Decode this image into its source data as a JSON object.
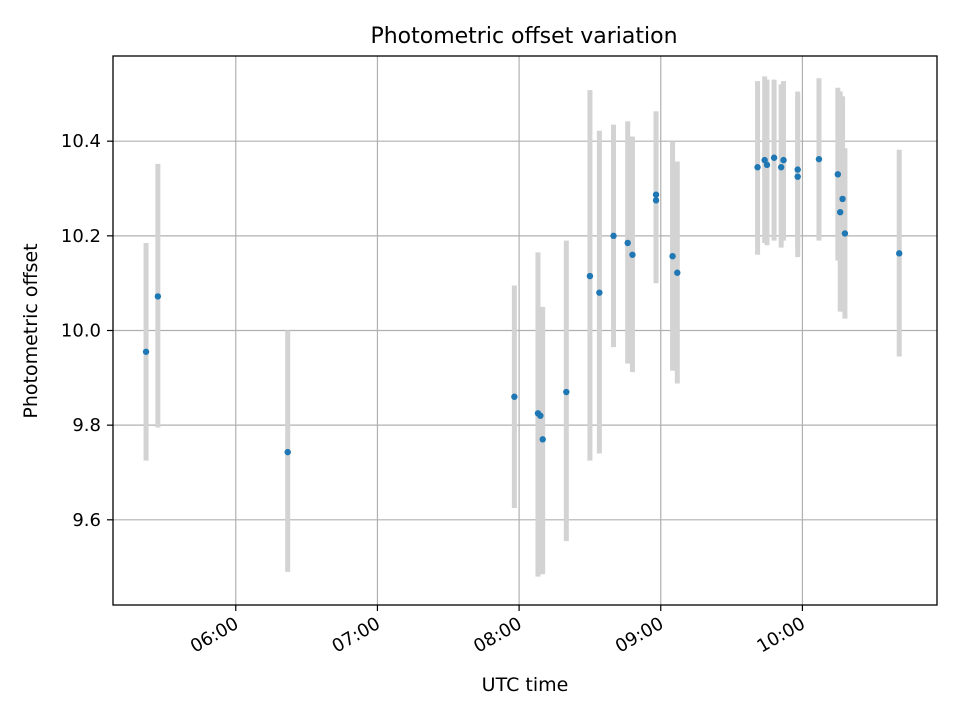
{
  "chart_data": {
    "type": "scatter",
    "title": "Photometric offset variation",
    "xlabel": "UTC time",
    "ylabel": "Photometric offset",
    "x_is_time": true,
    "xlim": [
      "05:08",
      "10:57"
    ],
    "ylim": [
      9.42,
      10.58
    ],
    "x_ticks": [
      "06:00",
      "07:00",
      "08:00",
      "09:00",
      "10:00"
    ],
    "y_ticks": [
      9.6,
      9.8,
      10.0,
      10.2,
      10.4
    ],
    "grid": true,
    "marker_color": "#1f77b4",
    "errorbar_color": "#d3d3d3",
    "points": [
      {
        "t": "05:22",
        "y": 9.955,
        "lo": 9.725,
        "hi": 10.185
      },
      {
        "t": "05:27",
        "y": 10.072,
        "lo": 9.795,
        "hi": 10.352
      },
      {
        "t": "06:22",
        "y": 9.743,
        "lo": 9.49,
        "hi": 10.0
      },
      {
        "t": "07:58",
        "y": 9.86,
        "lo": 9.625,
        "hi": 10.095
      },
      {
        "t": "08:08",
        "y": 9.825,
        "lo": 9.48,
        "hi": 10.165
      },
      {
        "t": "08:09",
        "y": 9.82,
        "lo": 9.49,
        "hi": 10.05
      },
      {
        "t": "08:10",
        "y": 9.77,
        "lo": 9.485,
        "hi": 10.05
      },
      {
        "t": "08:20",
        "y": 9.87,
        "lo": 9.555,
        "hi": 10.19
      },
      {
        "t": "08:30",
        "y": 10.115,
        "lo": 9.725,
        "hi": 10.508
      },
      {
        "t": "08:34",
        "y": 10.08,
        "lo": 9.74,
        "hi": 10.422
      },
      {
        "t": "08:40",
        "y": 10.2,
        "lo": 9.965,
        "hi": 10.435
      },
      {
        "t": "08:46",
        "y": 10.185,
        "lo": 9.93,
        "hi": 10.442
      },
      {
        "t": "08:48",
        "y": 10.16,
        "lo": 9.912,
        "hi": 10.41
      },
      {
        "t": "08:58",
        "y": 10.287,
        "lo": 10.1,
        "hi": 10.463
      },
      {
        "t": "08:58",
        "y": 10.275,
        "lo": 10.1,
        "hi": 10.463
      },
      {
        "t": "09:05",
        "y": 10.157,
        "lo": 9.915,
        "hi": 10.4
      },
      {
        "t": "09:07",
        "y": 10.122,
        "lo": 9.888,
        "hi": 10.357
      },
      {
        "t": "09:41",
        "y": 10.345,
        "lo": 10.16,
        "hi": 10.527
      },
      {
        "t": "09:44",
        "y": 10.36,
        "lo": 10.185,
        "hi": 10.537
      },
      {
        "t": "09:45",
        "y": 10.35,
        "lo": 10.18,
        "hi": 10.53
      },
      {
        "t": "09:48",
        "y": 10.365,
        "lo": 10.19,
        "hi": 10.53
      },
      {
        "t": "09:51",
        "y": 10.345,
        "lo": 10.175,
        "hi": 10.52
      },
      {
        "t": "09:52",
        "y": 10.36,
        "lo": 10.19,
        "hi": 10.527
      },
      {
        "t": "09:58",
        "y": 10.325,
        "lo": 10.155,
        "hi": 10.497
      },
      {
        "t": "09:58",
        "y": 10.34,
        "lo": 10.175,
        "hi": 10.505
      },
      {
        "t": "10:07",
        "y": 10.362,
        "lo": 10.19,
        "hi": 10.533
      },
      {
        "t": "10:15",
        "y": 10.33,
        "lo": 10.148,
        "hi": 10.513
      },
      {
        "t": "10:16",
        "y": 10.25,
        "lo": 10.04,
        "hi": 10.505
      },
      {
        "t": "10:17",
        "y": 10.278,
        "lo": 10.04,
        "hi": 10.495
      },
      {
        "t": "10:18",
        "y": 10.205,
        "lo": 10.025,
        "hi": 10.385
      },
      {
        "t": "10:41",
        "y": 10.163,
        "lo": 9.945,
        "hi": 10.382
      }
    ]
  }
}
